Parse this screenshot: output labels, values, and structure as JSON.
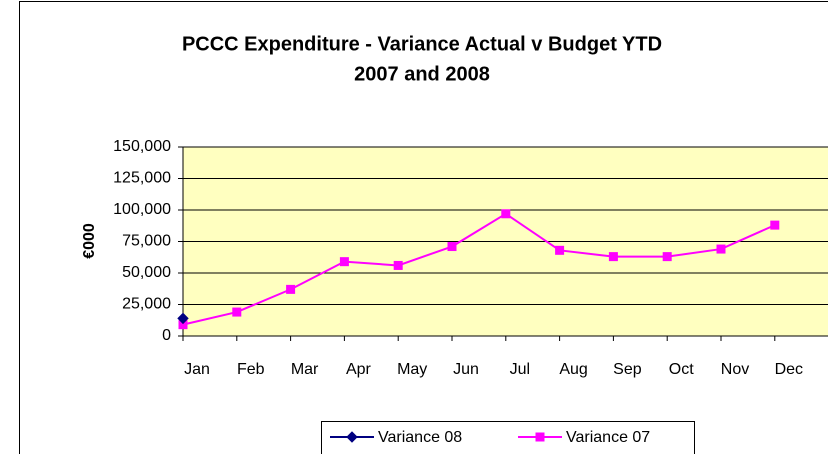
{
  "chart_data": {
    "type": "line",
    "title": "PCCC Expenditure - Variance Actual v Budget YTD",
    "subtitle": "2007 and 2008",
    "y_label": "€000",
    "categories": [
      "Jan",
      "Feb",
      "Mar",
      "Apr",
      "May",
      "Jun",
      "Jul",
      "Aug",
      "Sep",
      "Oct",
      "Nov",
      "Dec"
    ],
    "series": [
      {
        "name": "Variance 08",
        "color": "#000080",
        "marker": "diamond",
        "values": [
          14000,
          null,
          null,
          null,
          null,
          null,
          null,
          null,
          null,
          null,
          null,
          null
        ]
      },
      {
        "name": "Variance 07",
        "color": "#ff00ff",
        "marker": "square",
        "values": [
          9000,
          19000,
          37000,
          59000,
          56000,
          71000,
          97000,
          68000,
          63000,
          63000,
          69000,
          88000
        ]
      }
    ],
    "ylim": [
      0,
      150000
    ],
    "yticks": [
      0,
      {
        "value": 25000,
        "label": "25,000"
      },
      {
        "value": 50000,
        "label": "50,000"
      },
      {
        "value": 75000,
        "label": "75,000"
      },
      {
        "value": 100000,
        "label": "100,000"
      },
      {
        "value": 125000,
        "label": "125,000"
      },
      {
        "value": 150000,
        "label": "150,000"
      }
    ],
    "grid": true,
    "legend": "bottom"
  }
}
